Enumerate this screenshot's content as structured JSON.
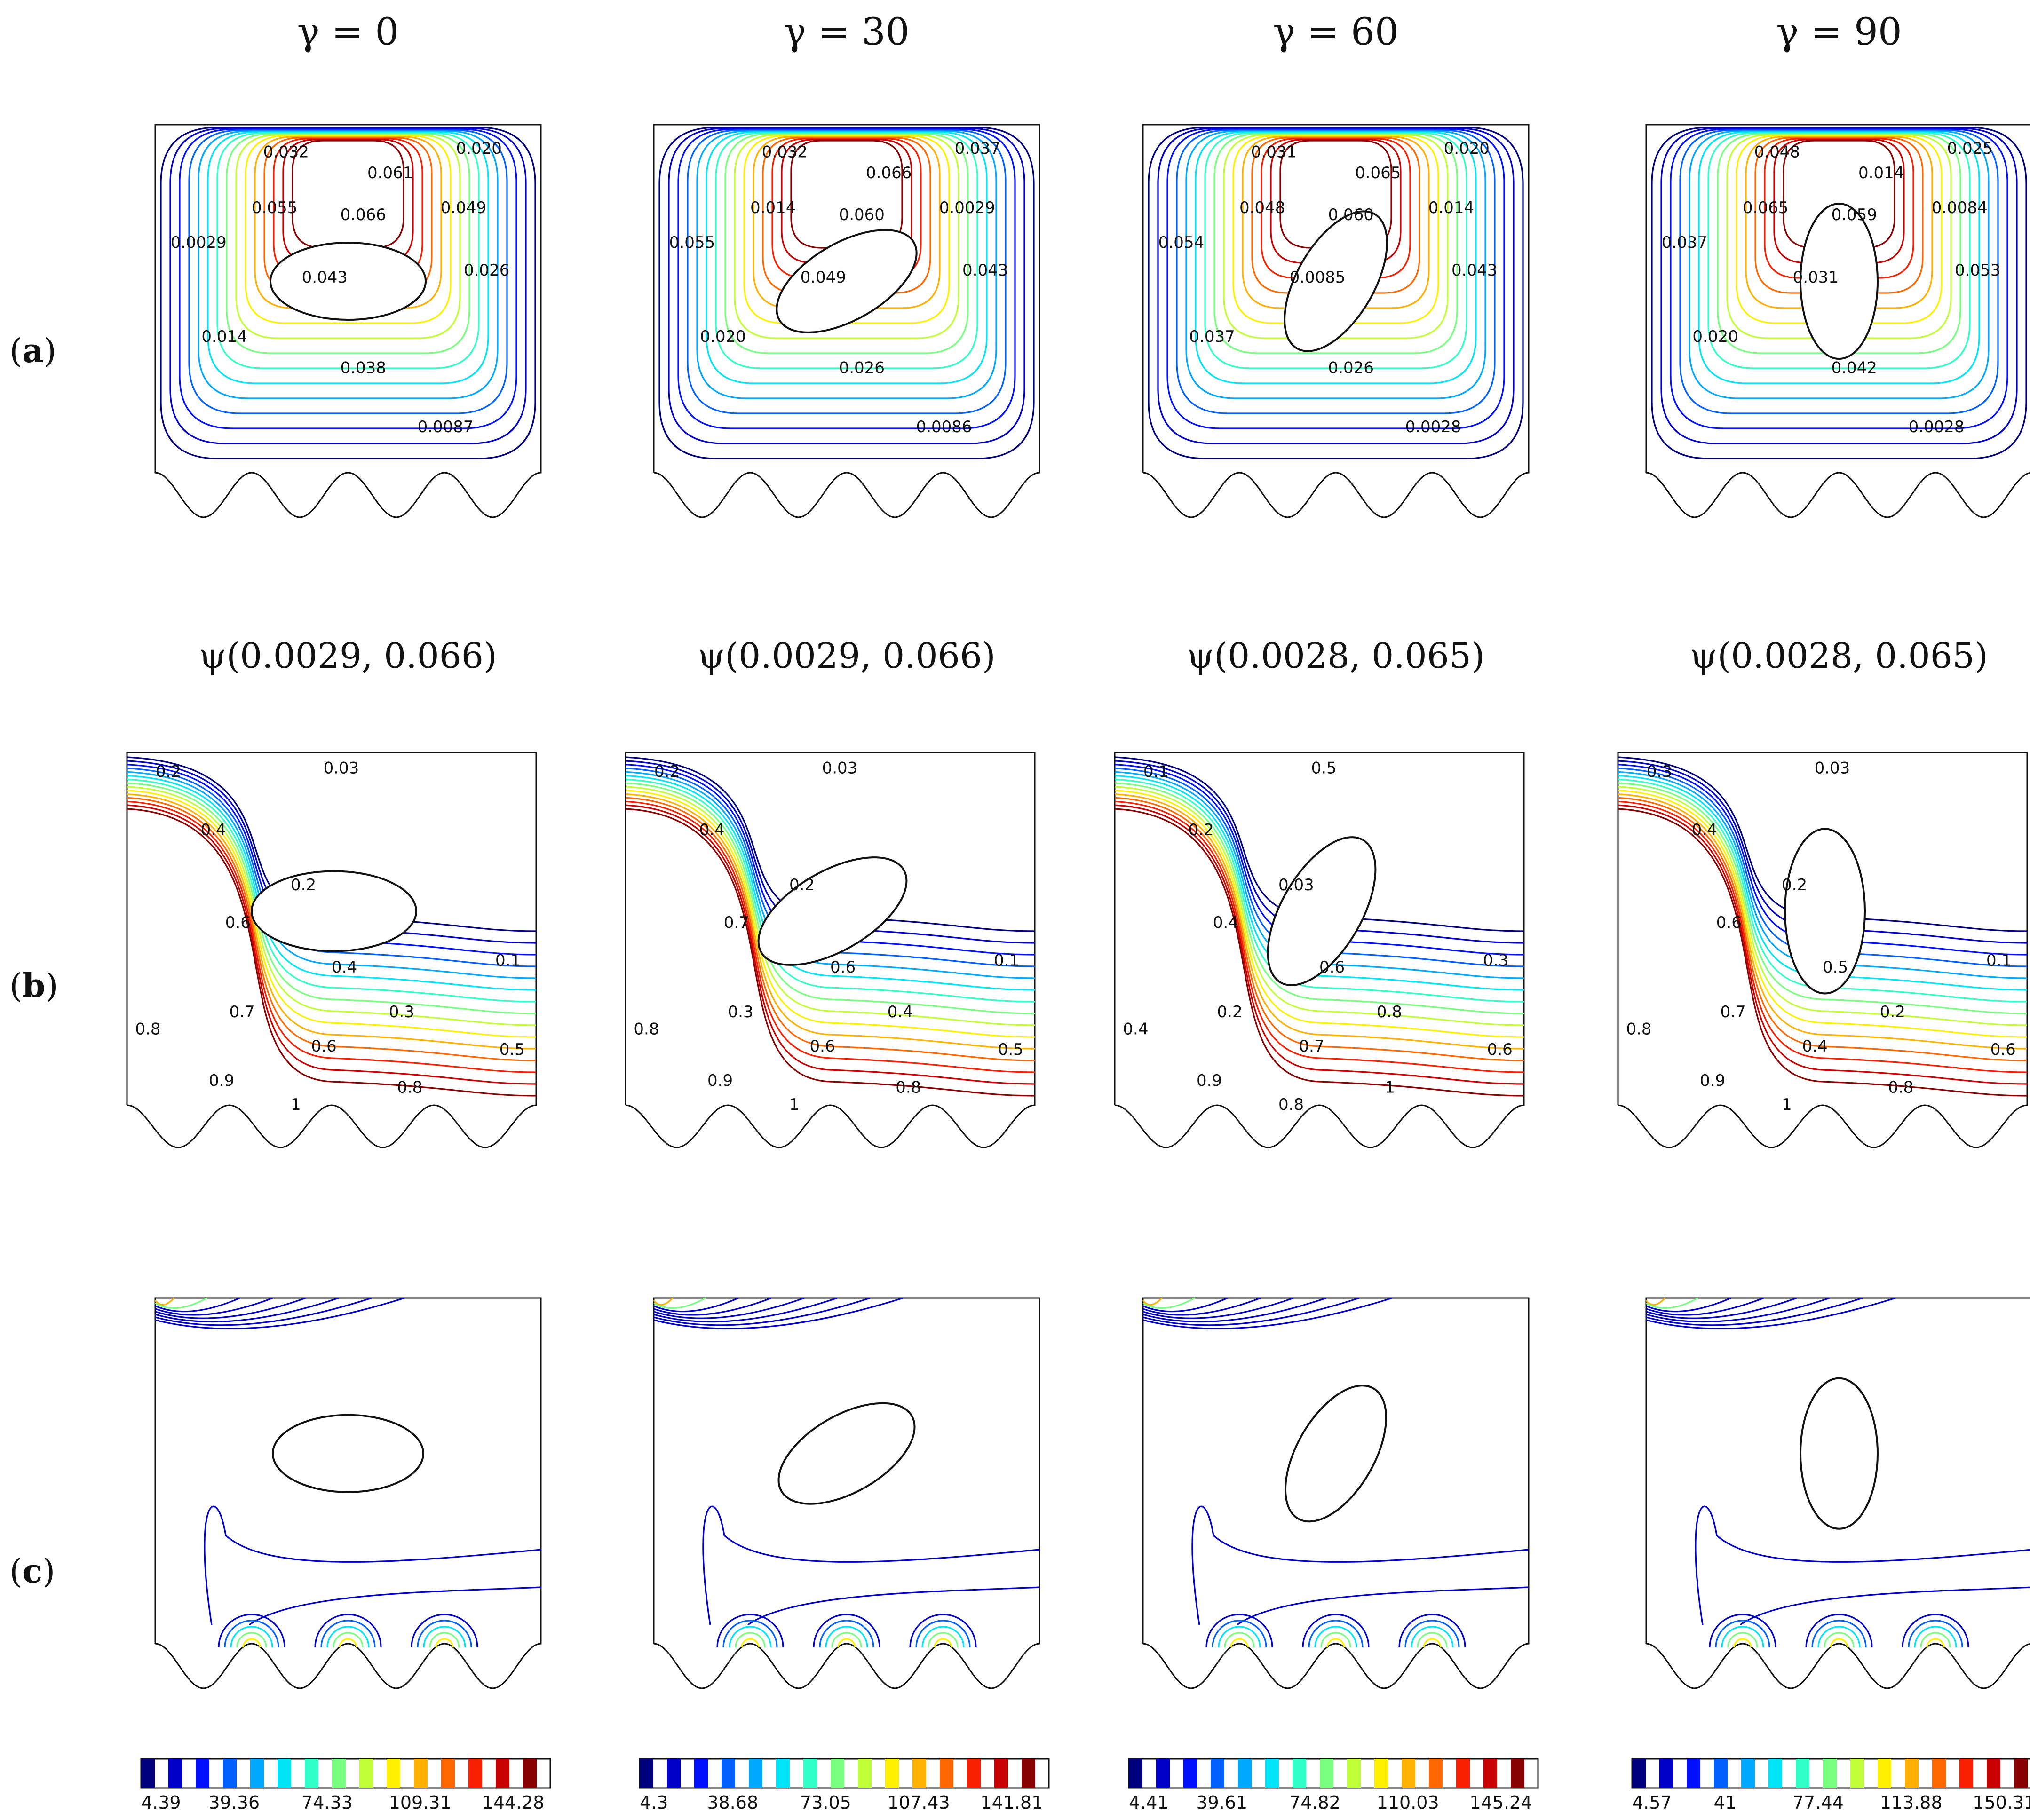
{
  "columns": [
    {
      "title": "γ = 0",
      "angle_deg": 0,
      "psi_summary": "ψ(0.0029, 0.066)",
      "streamline_labels": [
        "0.032",
        "0.020",
        "0.061",
        "0.055",
        "0.066",
        "0.049",
        "0.0029",
        "0.043",
        "0.026",
        "0.014",
        "0.038",
        "0.0087"
      ],
      "isotherm_labels": [
        "0.2",
        "0.03",
        "0.4",
        "0.2",
        "0.6",
        "0.4",
        "0.1",
        "0.7",
        "0.3",
        "0.8",
        "0.6",
        "0.5",
        "0.9",
        "0.8",
        "1"
      ],
      "colorbar_ticks": [
        "4.39",
        "39.36",
        "74.33",
        "109.31",
        "144.28"
      ]
    },
    {
      "title": "γ = 30",
      "angle_deg": 30,
      "psi_summary": "ψ(0.0029, 0.066)",
      "streamline_labels": [
        "0.032",
        "0.037",
        "0.066",
        "0.014",
        "0.060",
        "0.0029",
        "0.055",
        "0.049",
        "0.043",
        "0.020",
        "0.026",
        "0.0086"
      ],
      "isotherm_labels": [
        "0.2",
        "0.03",
        "0.4",
        "0.2",
        "0.7",
        "0.6",
        "0.1",
        "0.3",
        "0.4",
        "0.8",
        "0.6",
        "0.5",
        "0.9",
        "0.8",
        "1"
      ],
      "colorbar_ticks": [
        "4.3",
        "38.68",
        "73.05",
        "107.43",
        "141.81"
      ]
    },
    {
      "title": "γ = 60",
      "angle_deg": 60,
      "psi_summary": "ψ(0.0028, 0.065)",
      "streamline_labels": [
        "0.031",
        "0.020",
        "0.065",
        "0.048",
        "0.060",
        "0.014",
        "0.054",
        "0.0085",
        "0.043",
        "0.037",
        "0.026",
        "0.0028"
      ],
      "isotherm_labels": [
        "0.1",
        "0.5",
        "0.2",
        "0.03",
        "0.4",
        "0.6",
        "0.3",
        "0.2",
        "0.8",
        "0.4",
        "0.7",
        "0.6",
        "0.9",
        "1",
        "0.8"
      ],
      "colorbar_ticks": [
        "4.41",
        "39.61",
        "74.82",
        "110.03",
        "145.24"
      ]
    },
    {
      "title": "γ = 90",
      "angle_deg": 90,
      "psi_summary": "ψ(0.0028, 0.065)",
      "streamline_labels": [
        "0.048",
        "0.025",
        "0.014",
        "0.065",
        "0.059",
        "0.0084",
        "0.037",
        "0.031",
        "0.053",
        "0.020",
        "0.042",
        "0.0028"
      ],
      "isotherm_labels": [
        "0.3",
        "0.03",
        "0.4",
        "0.2",
        "0.6",
        "0.5",
        "0.1",
        "0.7",
        "0.2",
        "0.8",
        "0.4",
        "0.6",
        "0.9",
        "0.8",
        "1"
      ],
      "colorbar_ticks": [
        "4.57",
        "41",
        "77.44",
        "113.88",
        "150.31"
      ]
    }
  ],
  "row_labels": [
    "a",
    "b",
    "c"
  ],
  "colors": {
    "jet": [
      "#00007f",
      "#0000c8",
      "#0010ff",
      "#0060ff",
      "#00a8ff",
      "#00e4f8",
      "#30ffc8",
      "#78ff80",
      "#c0ff38",
      "#fff000",
      "#ffb000",
      "#ff6800",
      "#f82000",
      "#c80000",
      "#880000"
    ]
  }
}
